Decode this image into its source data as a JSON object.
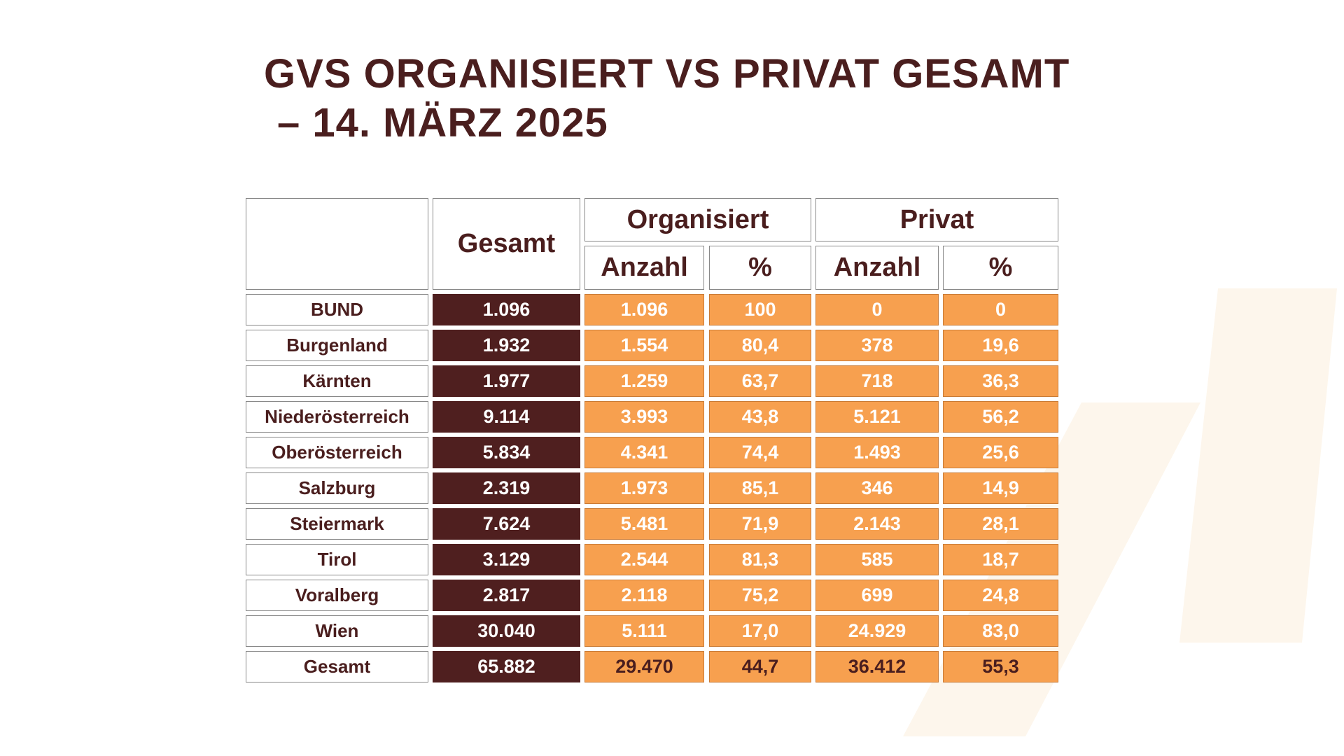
{
  "title": [
    "GVS ORGANISIERT VS PRIVAT GESAMT",
    "– 14. MÄRZ 2025"
  ],
  "table": {
    "header": {
      "total": "Gesamt",
      "groups": [
        "Organisiert",
        "Privat"
      ],
      "sub": [
        "Anzahl",
        "%",
        "Anzahl",
        "%"
      ]
    },
    "rows": [
      [
        "BUND",
        "1.096",
        "1.096",
        "100",
        "0",
        "0"
      ],
      [
        "Burgenland",
        "1.932",
        "1.554",
        "80,4",
        "378",
        "19,6"
      ],
      [
        "Kärnten",
        "1.977",
        "1.259",
        "63,7",
        "718",
        "36,3"
      ],
      [
        "Niederösterreich",
        "9.114",
        "3.993",
        "43,8",
        "5.121",
        "56,2"
      ],
      [
        "Oberösterreich",
        "5.834",
        "4.341",
        "74,4",
        "1.493",
        "25,6"
      ],
      [
        "Salzburg",
        "2.319",
        "1.973",
        "85,1",
        "346",
        "14,9"
      ],
      [
        "Steiermark",
        "7.624",
        "5.481",
        "71,9",
        "2.143",
        "28,1"
      ],
      [
        "Tirol",
        "3.129",
        "2.544",
        "81,3",
        "585",
        "18,7"
      ],
      [
        "Voralberg",
        "2.817",
        "2.118",
        "75,2",
        "699",
        "24,8"
      ],
      [
        "Wien",
        "30.040",
        "5.111",
        "17,0",
        "24.929",
        "83,0"
      ],
      [
        "Gesamt",
        "65.882",
        "29.470",
        "44,7",
        "36.412",
        "55,3"
      ]
    ]
  }
}
